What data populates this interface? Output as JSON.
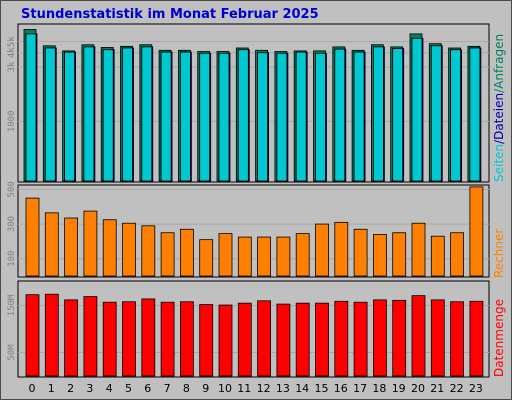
{
  "title": "Stundenstatistik im Monat Februar 2025",
  "colors": {
    "background": "#c0c0c0",
    "title": "#0000cc",
    "seiten": "#00c8d0",
    "dateien": "#0000a8",
    "anfragen": "#008060",
    "rechner": "#ff8000",
    "datenmenge": "#ff0000"
  },
  "side_labels": {
    "top": {
      "seiten": "Seiten",
      "sep1": "/",
      "dateien": "Dateien",
      "sep2": "/",
      "anfragen": "Anfragen"
    },
    "middle": "Rechner",
    "bottom": "Datenmenge"
  },
  "chart_data": [
    {
      "type": "bar",
      "panel": "top",
      "x": [
        "0",
        "1",
        "2",
        "3",
        "4",
        "5",
        "6",
        "7",
        "8",
        "9",
        "10",
        "11",
        "12",
        "13",
        "14",
        "15",
        "16",
        "17",
        "18",
        "19",
        "20",
        "21",
        "22",
        "23"
      ],
      "scale": "log",
      "ylim": [
        300,
        7000
      ],
      "yticks": [
        {
          "value": 1000,
          "label": "1000"
        },
        {
          "value": 3000,
          "label": "3k"
        },
        {
          "value": 4000,
          "label": "4k"
        },
        {
          "value": 5000,
          "label": "5k"
        }
      ],
      "series": [
        {
          "name": "Anfragen",
          "values": [
            6400,
            4600,
            4150,
            4700,
            4450,
            4550,
            4700,
            4200,
            4200,
            4100,
            4100,
            4400,
            4200,
            4100,
            4150,
            4150,
            4500,
            4200,
            4700,
            4500,
            5850,
            4800,
            4400,
            4550
          ]
        },
        {
          "name": "Seiten",
          "values": [
            5850,
            4400,
            4050,
            4500,
            4250,
            4400,
            4500,
            4050,
            4050,
            3950,
            3950,
            4250,
            4000,
            3950,
            4050,
            3950,
            4300,
            4050,
            4500,
            4350,
            5350,
            4600,
            4250,
            4400
          ]
        }
      ]
    },
    {
      "type": "bar",
      "panel": "middle",
      "x": [
        "0",
        "1",
        "2",
        "3",
        "4",
        "5",
        "6",
        "7",
        "8",
        "9",
        "10",
        "11",
        "12",
        "13",
        "14",
        "15",
        "16",
        "17",
        "18",
        "19",
        "20",
        "21",
        "22",
        "23"
      ],
      "ylim": [
        0,
        520
      ],
      "yticks": [
        {
          "value": 100,
          "label": "100"
        },
        {
          "value": 300,
          "label": "300"
        },
        {
          "value": 500,
          "label": "500"
        }
      ],
      "series": [
        {
          "name": "Rechner",
          "values": [
            450,
            365,
            335,
            375,
            325,
            305,
            290,
            250,
            270,
            210,
            245,
            225,
            225,
            225,
            245,
            300,
            310,
            270,
            240,
            250,
            305,
            230,
            250,
            515
          ]
        }
      ]
    },
    {
      "type": "bar",
      "panel": "bottom",
      "x": [
        "0",
        "1",
        "2",
        "3",
        "4",
        "5",
        "6",
        "7",
        "8",
        "9",
        "10",
        "11",
        "12",
        "13",
        "14",
        "15",
        "16",
        "17",
        "18",
        "19",
        "20",
        "21",
        "22",
        "23"
      ],
      "ylim": [
        0,
        200
      ],
      "yticks": [
        {
          "value": 50,
          "label": "50M"
        },
        {
          "value": 150,
          "label": "150M"
        }
      ],
      "series": [
        {
          "name": "Datenmenge",
          "values": [
            173,
            174,
            162,
            169,
            157,
            158,
            164,
            157,
            158,
            152,
            151,
            155,
            160,
            153,
            155,
            155,
            159,
            157,
            162,
            161,
            171,
            162,
            158,
            159
          ]
        }
      ]
    }
  ]
}
